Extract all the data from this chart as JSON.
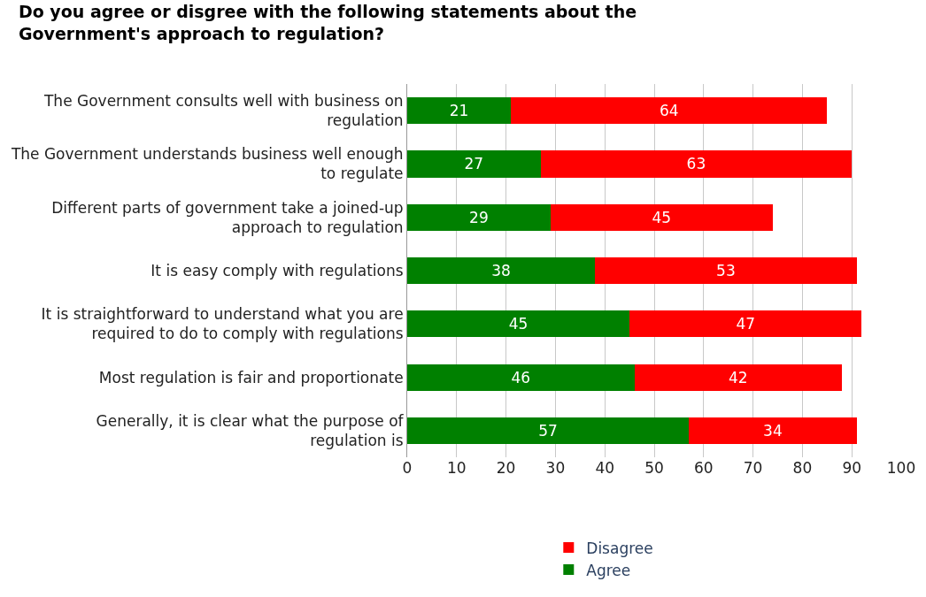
{
  "chart_data": {
    "type": "bar",
    "orientation": "horizontal",
    "stacked": true,
    "title": "Do you agree or disgree with the following statements about the Government's approach to regulation?",
    "categories": [
      "The Government consults well with business on regulation",
      "The Government understands business well enough to regulate",
      "Different parts of government take a joined-up approach to regulation",
      "It is easy comply with regulations",
      "It is straightforward to understand what you are required to do to comply with regulations",
      "Most regulation is fair and proportionate",
      "Generally, it is clear what the purpose of regulation is"
    ],
    "series": [
      {
        "name": "Agree",
        "color": "#008000",
        "values": [
          21,
          27,
          29,
          38,
          45,
          46,
          57
        ]
      },
      {
        "name": "Disagree",
        "color": "#ff0000",
        "values": [
          64,
          63,
          45,
          53,
          47,
          42,
          34
        ]
      }
    ],
    "xlim": [
      0,
      100
    ],
    "xticks": [
      0,
      10,
      20,
      30,
      40,
      50,
      60,
      70,
      80,
      90,
      100
    ],
    "grid": "x",
    "legend": "bottom",
    "data_labels": true
  }
}
